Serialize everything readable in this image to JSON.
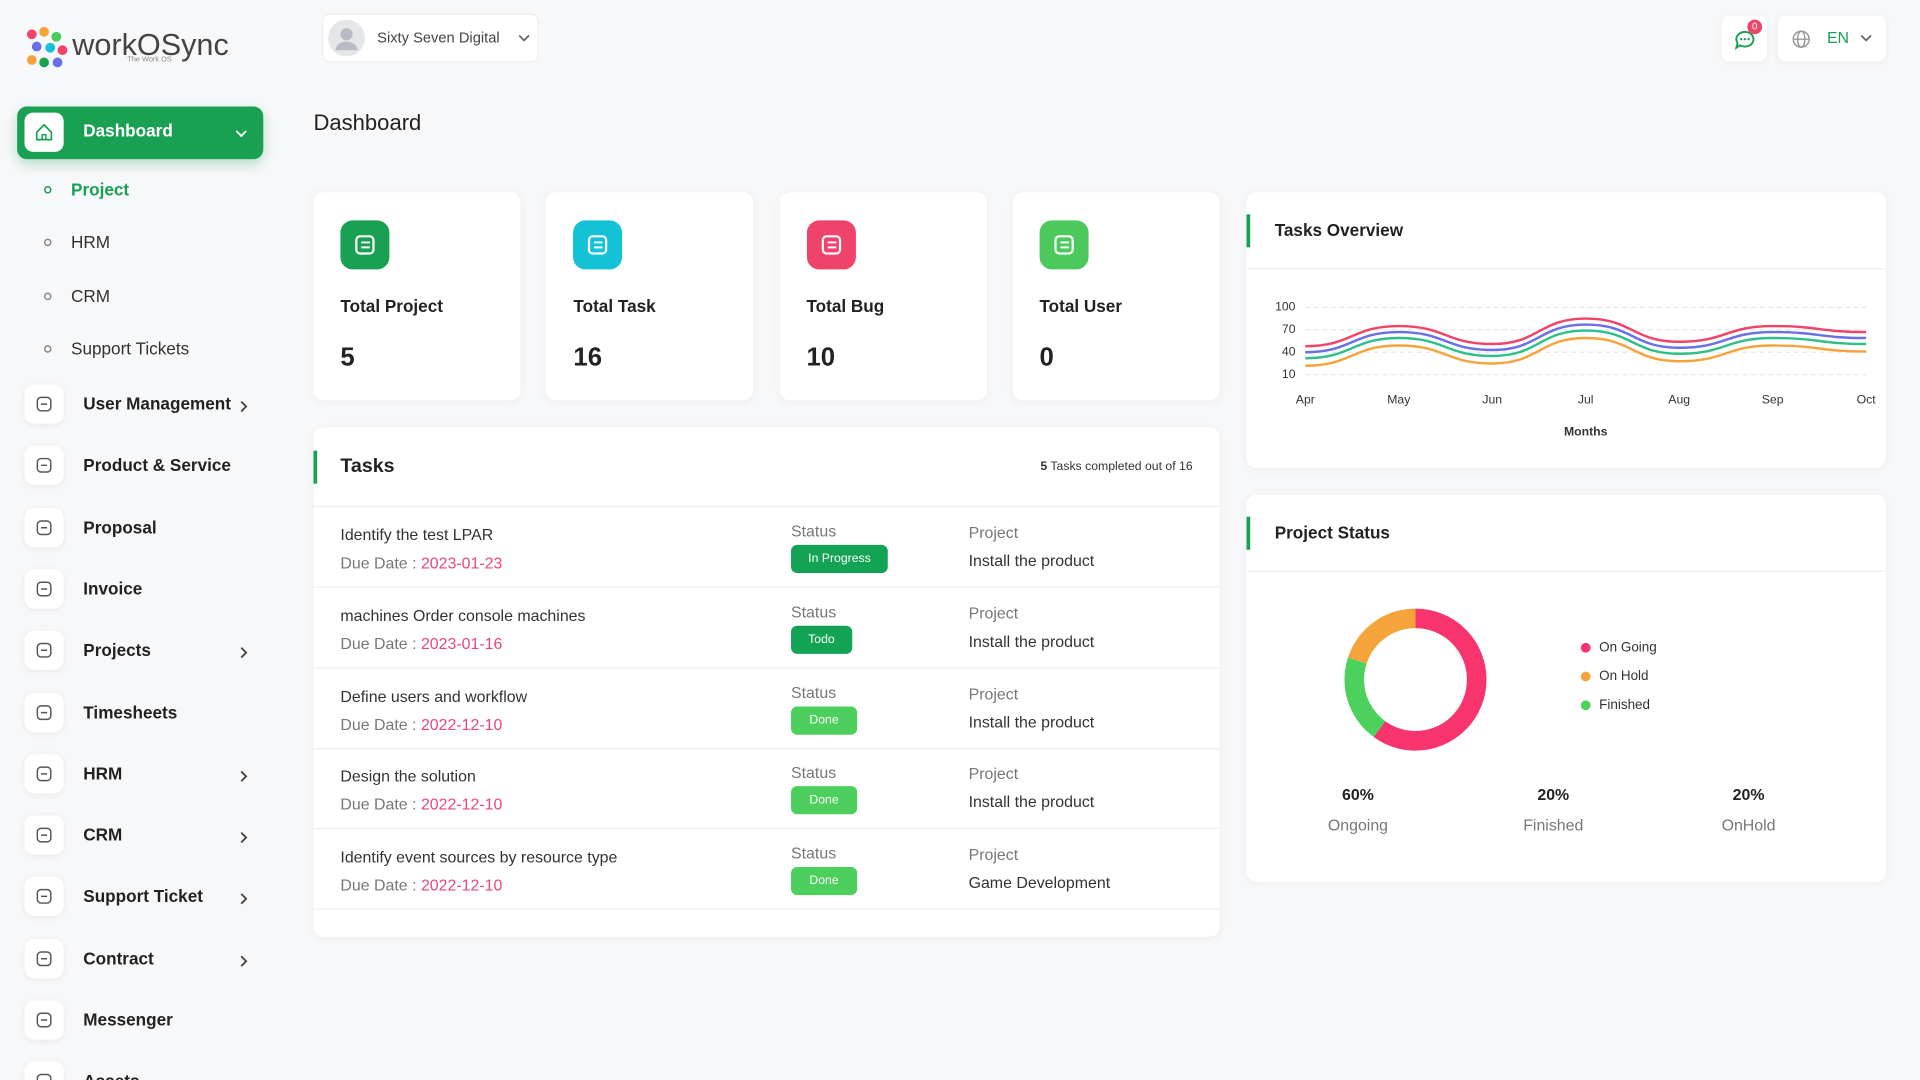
{
  "header": {
    "logo": {
      "name": "workOSync",
      "tagline": "The Work OS"
    },
    "workspace": "Sixty Seven Digital",
    "notifications": 0,
    "language": "EN"
  },
  "sidebar": {
    "active": {
      "label": "Dashboard",
      "submenu": [
        "Project",
        "HRM",
        "CRM",
        "Support Tickets"
      ]
    },
    "items": [
      {
        "label": "User Management",
        "expandable": true
      },
      {
        "label": "Product & Service",
        "expandable": false
      },
      {
        "label": "Proposal",
        "expandable": false
      },
      {
        "label": "Invoice",
        "expandable": false
      },
      {
        "label": "Projects",
        "expandable": true
      },
      {
        "label": "Timesheets",
        "expandable": false
      },
      {
        "label": "HRM",
        "expandable": true
      },
      {
        "label": "CRM",
        "expandable": true
      },
      {
        "label": "Support Ticket",
        "expandable": true
      },
      {
        "label": "Contract",
        "expandable": true
      },
      {
        "label": "Messenger",
        "expandable": false
      },
      {
        "label": "Assets",
        "expandable": false
      }
    ]
  },
  "page_title": "Dashboard",
  "stats": [
    {
      "label": "Total Project",
      "value": 5,
      "color": "#1aa053"
    },
    {
      "label": "Total Task",
      "value": 16,
      "color": "#14c2d8"
    },
    {
      "label": "Total Bug",
      "value": 10,
      "color": "#f0436a"
    },
    {
      "label": "Total User",
      "value": 0,
      "color": "#4cc95c"
    }
  ],
  "tasks": {
    "title": "Tasks",
    "summary": {
      "completed": 5,
      "text": "Tasks completed out of",
      "total": 16
    },
    "rows": [
      {
        "title": "Identify the test LPAR",
        "due_label": "Due Date :",
        "due_date": "2023-01-23",
        "status_label": "Status",
        "status": "In Progress",
        "project_label": "Project",
        "project": "Install the product"
      },
      {
        "title": "machines Order console machines",
        "due_label": "Due Date :",
        "due_date": "2023-01-16",
        "status_label": "Status",
        "status": "Todo",
        "project_label": "Project",
        "project": "Install the product"
      },
      {
        "title": "Define users and workflow",
        "due_label": "Due Date :",
        "due_date": "2022-12-10",
        "status_label": "Status",
        "status": "Done",
        "project_label": "Project",
        "project": "Install the product"
      },
      {
        "title": "Design the solution",
        "due_label": "Due Date :",
        "due_date": "2022-12-10",
        "status_label": "Status",
        "status": "Done",
        "project_label": "Project",
        "project": "Install the product"
      },
      {
        "title": "Identify event sources by resource type",
        "due_label": "Due Date :",
        "due_date": "2022-12-10",
        "status_label": "Status",
        "status": "Done",
        "project_label": "Project",
        "project": "Game Development"
      }
    ]
  },
  "chart_data": [
    {
      "type": "line",
      "title": "Tasks Overview",
      "xlabel": "Months",
      "categories": [
        "Apr",
        "May",
        "Jun",
        "Jul",
        "Aug",
        "Sep",
        "Oct"
      ],
      "series": [
        {
          "color": "#f0436a",
          "values": [
            48,
            75,
            51,
            85,
            54,
            75,
            67
          ]
        },
        {
          "color": "#6a6ee8",
          "values": [
            40,
            67,
            43,
            77,
            46,
            67,
            59
          ]
        },
        {
          "color": "#2fbf8a",
          "values": [
            32,
            59,
            35,
            69,
            38,
            59,
            51
          ]
        },
        {
          "color": "#f5a33b",
          "values": [
            22,
            49,
            25,
            59,
            28,
            49,
            41
          ]
        }
      ],
      "ylim": [
        10,
        100
      ],
      "yticks": [
        10,
        40,
        70,
        100
      ],
      "grid": true
    },
    {
      "type": "pie",
      "title": "Project Status",
      "donut": true,
      "legend": "right",
      "categories": [
        "On Going",
        "On Hold",
        "Finished"
      ],
      "values": [
        60,
        20,
        20
      ],
      "value_labels": [
        "60%",
        "20%",
        "20%"
      ],
      "colors": [
        "#f7346d",
        "#f5a33b",
        "#4cd15c"
      ],
      "summary": [
        {
          "value": 60,
          "value_label": "60%",
          "label": "Ongoing"
        },
        {
          "value": 20,
          "value_label": "20%",
          "label": "Finished"
        },
        {
          "value": 20,
          "value_label": "20%",
          "label": "OnHold"
        }
      ]
    }
  ]
}
